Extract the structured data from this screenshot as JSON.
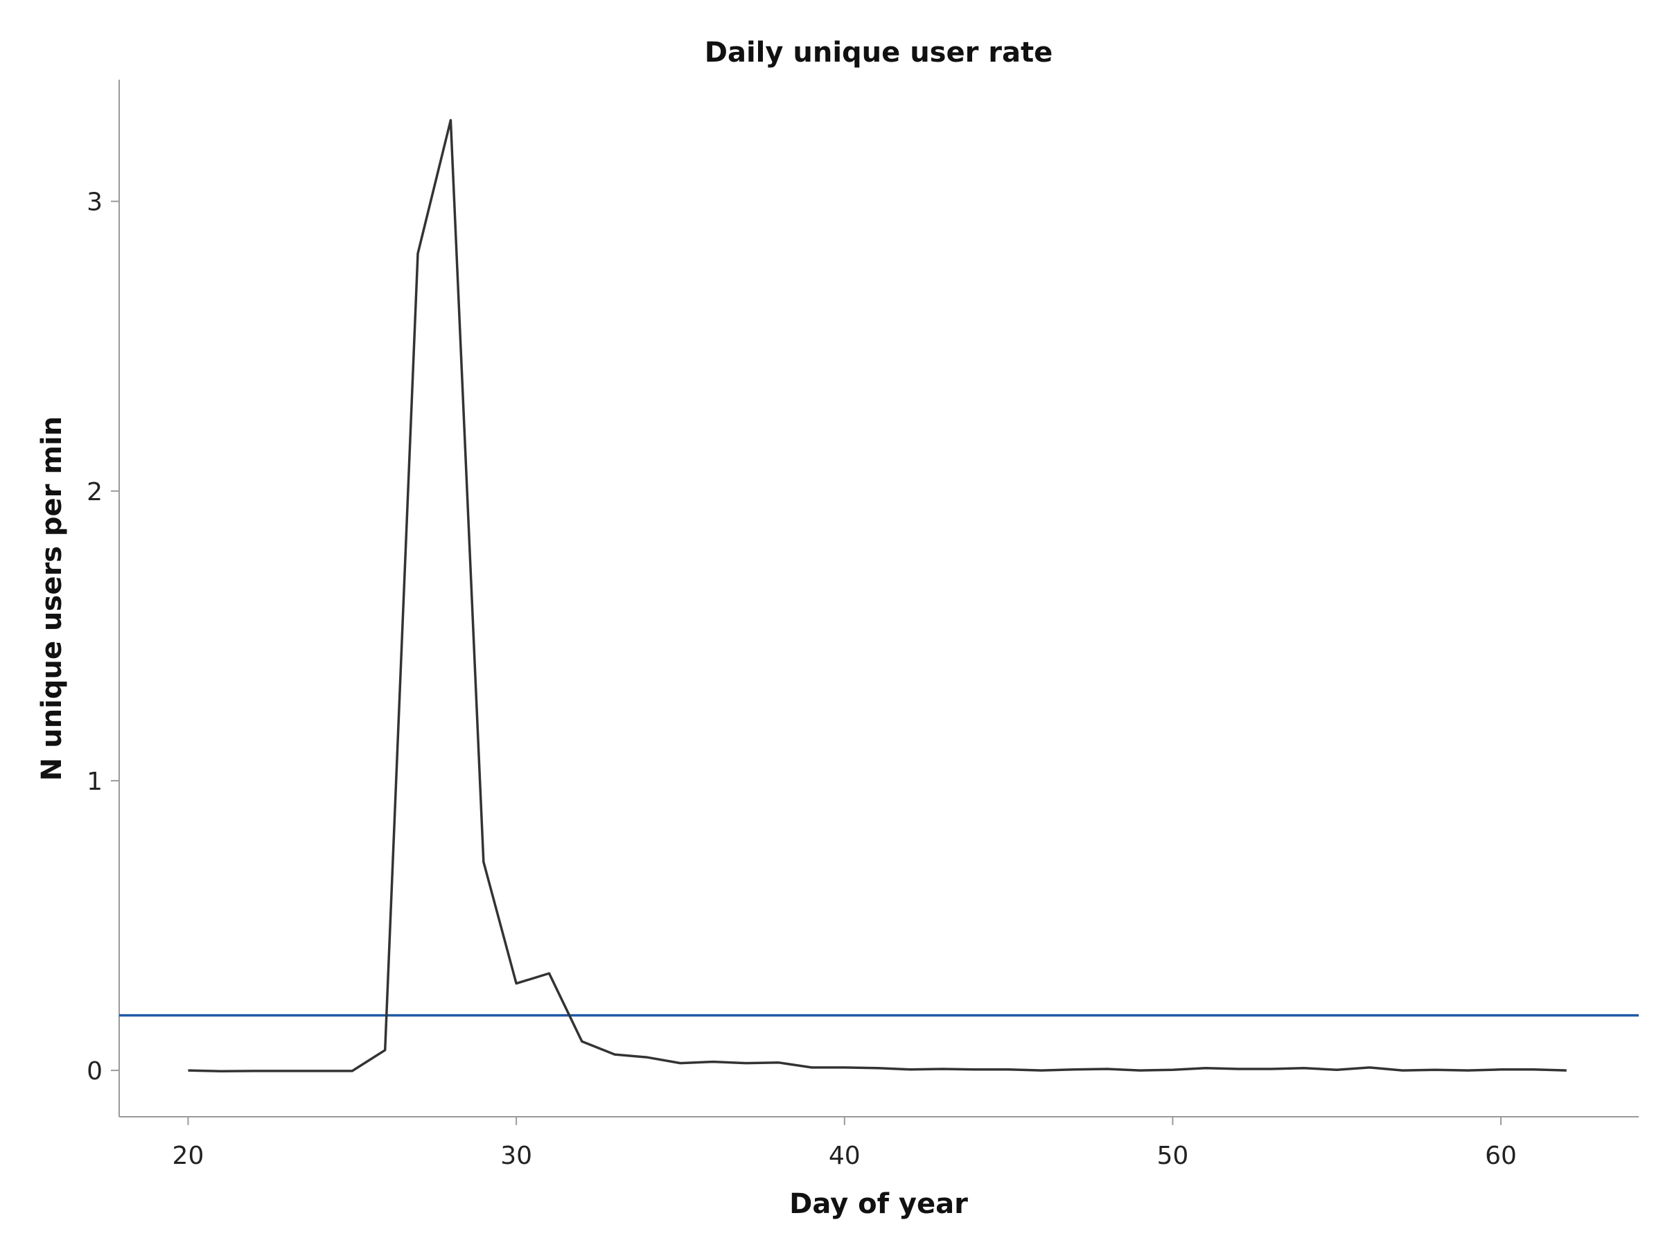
{
  "chart_data": {
    "type": "line",
    "title": "Daily unique user rate",
    "xlabel": "Day of year",
    "ylabel": "N unique users per min",
    "xlim": [
      17.9,
      64.2
    ],
    "ylim": [
      -0.16,
      3.42
    ],
    "xticks": [
      20,
      30,
      40,
      50,
      60
    ],
    "yticks": [
      0,
      1,
      2,
      3
    ],
    "grid": false,
    "series": [
      {
        "color": "#333333",
        "x": [
          20,
          21,
          22,
          23,
          24,
          25,
          26,
          27,
          28,
          29,
          30,
          31,
          32,
          33,
          34,
          35,
          36,
          37,
          38,
          39,
          40,
          41,
          42,
          43,
          44,
          45,
          46,
          47,
          48,
          49,
          50,
          51,
          52,
          53,
          54,
          55,
          56,
          57,
          58,
          59,
          60,
          61,
          62
        ],
        "y": [
          0.0,
          -0.003,
          -0.002,
          -0.002,
          -0.002,
          -0.002,
          0.07,
          2.82,
          3.28,
          0.72,
          0.3,
          0.335,
          0.1,
          0.055,
          0.045,
          0.025,
          0.03,
          0.025,
          0.027,
          0.01,
          0.01,
          0.008,
          0.003,
          0.005,
          0.003,
          0.003,
          0.0,
          0.003,
          0.005,
          0.0,
          0.002,
          0.008,
          0.005,
          0.005,
          0.008,
          0.002,
          0.01,
          0.0,
          0.002,
          0.0,
          0.003,
          0.003,
          0.0
        ]
      }
    ],
    "reference_lines": [
      {
        "orientation": "horizontal",
        "y": 0.19,
        "color": "#1f5aa6"
      }
    ]
  }
}
